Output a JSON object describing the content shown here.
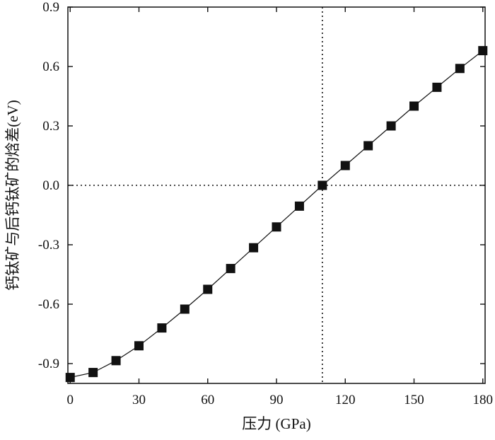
{
  "chart_data": {
    "type": "line",
    "xlabel": "压力 (GPa)",
    "ylabel": "钙钛矿与后钙钛矿的焓差(eV)",
    "xlim": [
      -1,
      181
    ],
    "ylim": [
      -1.0,
      0.9
    ],
    "x_ticks": [
      0,
      30,
      60,
      90,
      120,
      150,
      180
    ],
    "x_tick_labels": [
      "0",
      "30",
      "60",
      "90",
      "120",
      "150",
      "180"
    ],
    "y_ticks": [
      0.9,
      0.6,
      0.3,
      0.0,
      -0.3,
      -0.6,
      -0.9
    ],
    "y_tick_labels": [
      "0.9",
      "0.6",
      "0.3",
      "0.0",
      "-0.3",
      "-0.6",
      "-0.9"
    ],
    "grid": false,
    "reference_lines": {
      "vertical_x": 110,
      "horizontal_y": 0.0,
      "style": "dotted"
    },
    "series": [
      {
        "marker": "square",
        "color": "#111111",
        "points": [
          {
            "x": 0,
            "y": -0.97
          },
          {
            "x": 10,
            "y": -0.945
          },
          {
            "x": 20,
            "y": -0.885
          },
          {
            "x": 30,
            "y": -0.81
          },
          {
            "x": 40,
            "y": -0.72
          },
          {
            "x": 50,
            "y": -0.625
          },
          {
            "x": 60,
            "y": -0.525
          },
          {
            "x": 70,
            "y": -0.42
          },
          {
            "x": 80,
            "y": -0.315
          },
          {
            "x": 90,
            "y": -0.21
          },
          {
            "x": 100,
            "y": -0.105
          },
          {
            "x": 110,
            "y": 0.0
          },
          {
            "x": 120,
            "y": 0.1
          },
          {
            "x": 130,
            "y": 0.2
          },
          {
            "x": 140,
            "y": 0.3
          },
          {
            "x": 150,
            "y": 0.4
          },
          {
            "x": 160,
            "y": 0.495
          },
          {
            "x": 170,
            "y": 0.59
          },
          {
            "x": 180,
            "y": 0.68
          }
        ]
      }
    ]
  }
}
